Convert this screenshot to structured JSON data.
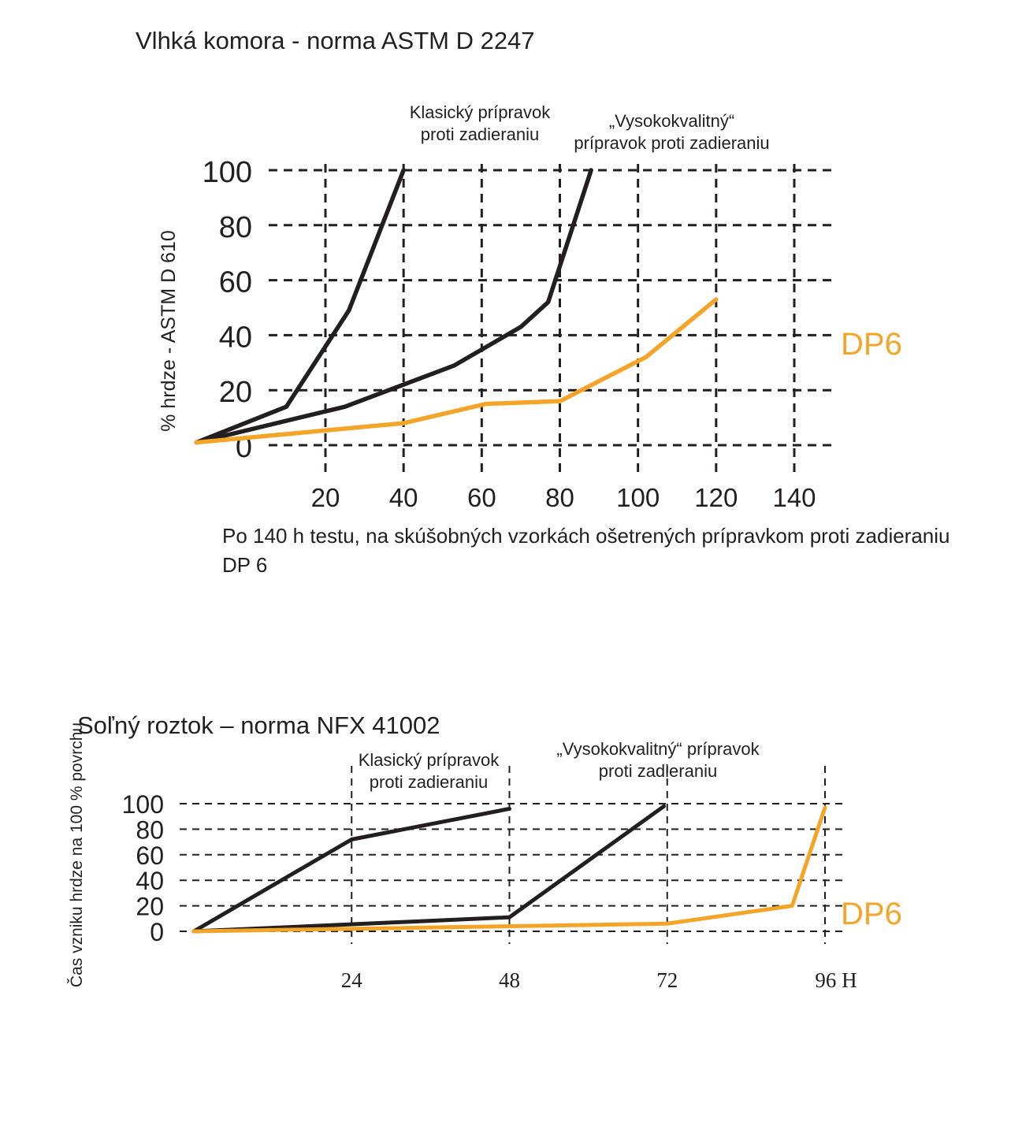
{
  "chart_data": [
    {
      "type": "line",
      "title": "Vlhká komora  - norma ASTM D 2247",
      "ylabel": "% hrdze - ASTM D 610",
      "xlabel": "",
      "xlim": [
        0,
        140
      ],
      "ylim": [
        0,
        100
      ],
      "xticks": [
        "20",
        "40",
        "60",
        "80",
        "100",
        "120",
        "140"
      ],
      "yticks": [
        "0",
        "20",
        "40",
        "60",
        "80",
        "100"
      ],
      "grid": true,
      "annotations": {
        "classic": [
          "Klasický prípravok",
          "proti zadieraniu"
        ],
        "premium": [
          "„Vysokokvalitný“",
          "prípravok proti zadieraniu"
        ],
        "dp6": "DP6"
      },
      "series": [
        {
          "name": "Klasický prípravok proti zadieraniu",
          "color": "#231f20",
          "x": [
            -13,
            10,
            26,
            40
          ],
          "y": [
            1,
            14,
            49,
            100
          ]
        },
        {
          "name": "„Vysokokvalitný“ prípravok proti zadieraniu",
          "color": "#231f20",
          "x": [
            -13,
            25,
            53,
            70,
            77,
            88
          ],
          "y": [
            1,
            14,
            29,
            43,
            52,
            100
          ]
        },
        {
          "name": "DP6",
          "color": "#f4a528",
          "x": [
            -13,
            40,
            61,
            80,
            102,
            120
          ],
          "y": [
            1,
            8,
            15,
            16,
            32,
            53
          ]
        }
      ]
    },
    {
      "type": "line",
      "title": "Soľný roztok – norma  NFX 41002",
      "ylabel": "Čas vzniku hrdze na 100 % povrchu",
      "xlabel": "",
      "xlim": [
        0,
        96
      ],
      "ylim": [
        0,
        100
      ],
      "xticks": [
        "24",
        "48",
        "72",
        "96 H"
      ],
      "yticks": [
        "0",
        "20",
        "40",
        "60",
        "80",
        "100"
      ],
      "grid": true,
      "annotations": {
        "classic": [
          "Klasický prípravok",
          "proti zadieraniu"
        ],
        "premium": [
          "„Vysokokvalitný“ prípravok",
          "proti zadieraniu"
        ],
        "dp6": "DP6"
      },
      "series": [
        {
          "name": "Klasický prípravok proti zadieraniu",
          "color": "#231f20",
          "x": [
            0,
            24,
            48
          ],
          "y": [
            0,
            72,
            96
          ]
        },
        {
          "name": "„Vysokokvalitný“ prípravok proti zadieraniu",
          "color": "#231f20",
          "x": [
            0,
            48,
            71.5
          ],
          "y": [
            0,
            11,
            98
          ]
        },
        {
          "name": "DP6",
          "color": "#f4a528",
          "x": [
            0,
            72,
            91,
            96
          ],
          "y": [
            0,
            6,
            20,
            97
          ]
        }
      ]
    }
  ],
  "note": "Po 140 h testu, na skúšobných vzorkách ošetrených prípravkom proti zadieraniu DP 6"
}
